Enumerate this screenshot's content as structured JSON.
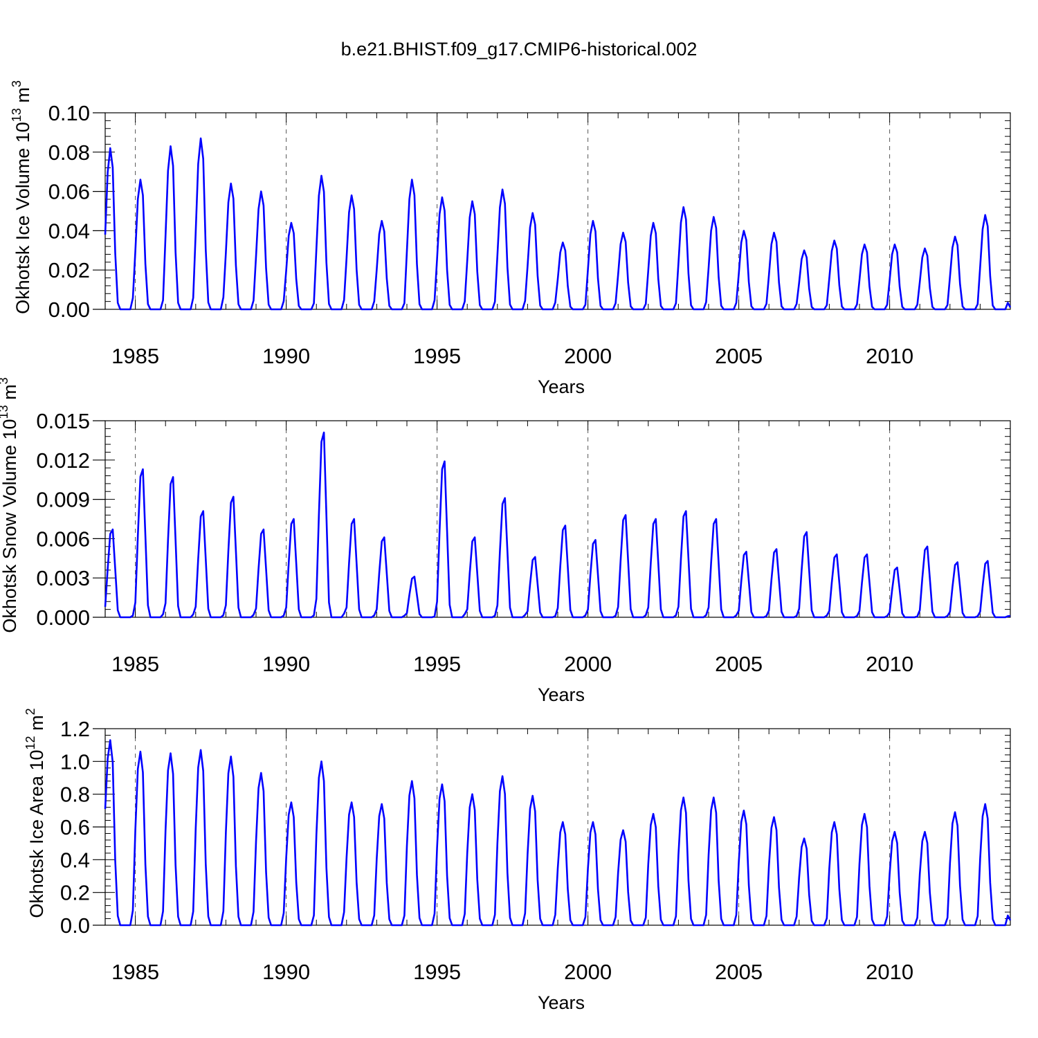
{
  "title": "b.e21.BHIST.f09_g17.CMIP6-historical.002",
  "line_color": "#0000ff",
  "chart_data": [
    {
      "type": "line",
      "id": "ice-volume",
      "ylabel_main": "Okhotsk Ice Volume 10",
      "ylabel_sup": "13",
      "ylabel_unit": " m",
      "ylabel_unit_sup": "3",
      "xlabel": "Years",
      "xlim": [
        1984.0,
        2014.0
      ],
      "ylim": [
        0,
        0.1
      ],
      "x_ticks": [
        1985,
        1990,
        1995,
        2000,
        2005,
        2010
      ],
      "x_tick_labels": [
        "1985",
        "1990",
        "1995",
        "2000",
        "2005",
        "2010"
      ],
      "y_ticks": [
        0,
        0.02,
        0.04,
        0.06,
        0.08,
        0.1
      ],
      "y_tick_labels": [
        "0.00",
        "0.02",
        "0.04",
        "0.06",
        "0.08",
        "0.10"
      ],
      "series": [
        {
          "name": "Okhotsk Ice Volume",
          "start_year": 1984,
          "start_value": 0.038,
          "annual_peaks": [
            0.082,
            0.066,
            0.083,
            0.087,
            0.064,
            0.06,
            0.044,
            0.068,
            0.058,
            0.045,
            0.066,
            0.057,
            0.055,
            0.061,
            0.049,
            0.034,
            0.045,
            0.039,
            0.044,
            0.052,
            0.047,
            0.04,
            0.039,
            0.03,
            0.035,
            0.033,
            0.033,
            0.031,
            0.037,
            0.048
          ]
        }
      ]
    },
    {
      "type": "line",
      "id": "snow-volume",
      "ylabel_main": "Okhotsk Snow Volume 10",
      "ylabel_sup": "13",
      "ylabel_unit": " m",
      "ylabel_unit_sup": "3",
      "xlabel": "Years",
      "xlim": [
        1984.0,
        2014.0
      ],
      "ylim": [
        0,
        0.015
      ],
      "x_ticks": [
        1985,
        1990,
        1995,
        2000,
        2005,
        2010
      ],
      "x_tick_labels": [
        "1985",
        "1990",
        "1995",
        "2000",
        "2005",
        "2010"
      ],
      "y_ticks": [
        0,
        0.003,
        0.006,
        0.009,
        0.012,
        0.015
      ],
      "y_tick_labels": [
        "0.000",
        "0.003",
        "0.006",
        "0.009",
        "0.012",
        "0.015"
      ],
      "series": [
        {
          "name": "Okhotsk Snow Volume",
          "start_year": 1984,
          "start_value": 0.0008,
          "annual_peaks": [
            0.0067,
            0.0113,
            0.0107,
            0.0081,
            0.0092,
            0.0067,
            0.0075,
            0.0141,
            0.0075,
            0.0061,
            0.0031,
            0.0119,
            0.0061,
            0.0091,
            0.0046,
            0.007,
            0.0059,
            0.0078,
            0.0075,
            0.0081,
            0.0075,
            0.005,
            0.0052,
            0.0065,
            0.0048,
            0.0048,
            0.0038,
            0.0054,
            0.0042,
            0.0043
          ]
        }
      ]
    },
    {
      "type": "line",
      "id": "ice-area",
      "ylabel_main": "Okhotsk Ice Area 10",
      "ylabel_sup": "12",
      "ylabel_unit": " m",
      "ylabel_unit_sup": "2",
      "xlabel": "Years",
      "xlim": [
        1984.0,
        2014.0
      ],
      "ylim": [
        0,
        1.2
      ],
      "x_ticks": [
        1985,
        1990,
        1995,
        2000,
        2005,
        2010
      ],
      "x_tick_labels": [
        "1985",
        "1990",
        "1995",
        "2000",
        "2005",
        "2010"
      ],
      "y_ticks": [
        0,
        0.2,
        0.4,
        0.6,
        0.8,
        1.0,
        1.2
      ],
      "y_tick_labels": [
        "0.0",
        "0.2",
        "0.4",
        "0.6",
        "0.8",
        "1.0",
        "1.2"
      ],
      "series": [
        {
          "name": "Okhotsk Ice Area",
          "start_year": 1984,
          "start_value": 0.71,
          "annual_peaks": [
            1.13,
            1.06,
            1.05,
            1.07,
            1.03,
            0.93,
            0.75,
            1.0,
            0.75,
            0.74,
            0.88,
            0.86,
            0.8,
            0.91,
            0.79,
            0.63,
            0.63,
            0.58,
            0.68,
            0.78,
            0.78,
            0.7,
            0.66,
            0.53,
            0.63,
            0.68,
            0.57,
            0.57,
            0.69,
            0.74
          ]
        }
      ]
    }
  ]
}
